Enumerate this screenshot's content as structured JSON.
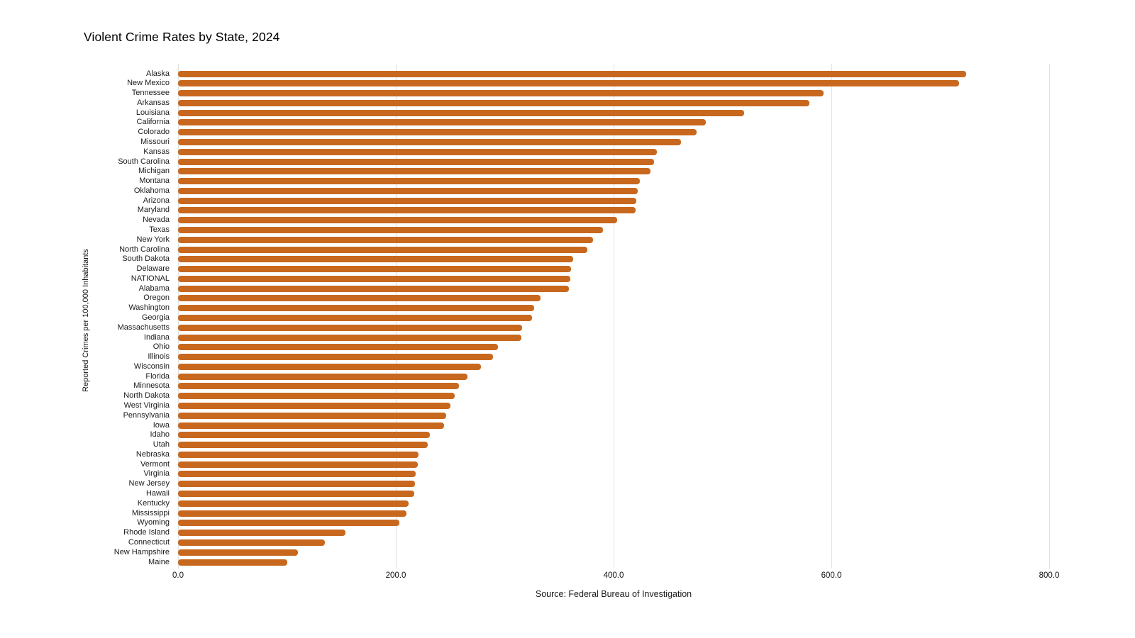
{
  "chart_data": {
    "type": "bar",
    "orientation": "horizontal",
    "title": "Violent Crime Rates by State, 2024",
    "ylabel": "Reported Crimes per 100,000 Inhabitants",
    "xlabel": "",
    "source": "Source: Federal Bureau of Investigation",
    "legend": false,
    "grid": true,
    "xlim": [
      0,
      800
    ],
    "x_ticks": [
      {
        "label": "0.0",
        "value": 0
      },
      {
        "label": "200.0",
        "value": 200
      },
      {
        "label": "400.0",
        "value": 400
      },
      {
        "label": "600.0",
        "value": 600
      },
      {
        "label": "800.0",
        "value": 800
      }
    ],
    "bar_color": "#C8681E",
    "gridline_color": "#E0E0E0",
    "categories": [
      "Alaska",
      "New Mexico",
      "Tennessee",
      "Arkansas",
      "Louisiana",
      "California",
      "Colorado",
      "Missouri",
      "Kansas",
      "South Carolina",
      "Michigan",
      "Montana",
      "Oklahoma",
      "Arizona",
      "Maryland",
      "Nevada",
      "Texas",
      "New York",
      "North Carolina",
      "South Dakota",
      "Delaware",
      "NATIONAL",
      "Alabama",
      "Oregon",
      "Washington",
      "Georgia",
      "Massachusetts",
      "Indiana",
      "Ohio",
      "Illinois",
      "Wisconsin",
      "Florida",
      "Minnesota",
      "North Dakota",
      "West Virginia",
      "Pennsylvania",
      "Iowa",
      "Idaho",
      "Utah",
      "Nebraska",
      "Vermont",
      "Virginia",
      "New Jersey",
      "Hawaii",
      "Kentucky",
      "Mississippi",
      "Wyoming",
      "Rhode Island",
      "Connecticut",
      "New Hampshire",
      "Maine"
    ],
    "values": [
      724,
      717,
      593,
      580,
      520,
      485,
      476,
      462,
      440,
      437,
      434,
      424,
      422,
      421,
      420,
      403,
      390,
      381,
      376,
      363,
      361,
      360,
      359,
      333,
      327,
      325,
      316,
      315,
      294,
      289,
      278,
      266,
      258,
      254,
      250,
      246,
      244,
      231,
      229,
      221,
      220,
      218,
      217.5,
      217,
      212,
      210,
      203,
      154,
      135,
      110,
      100
    ]
  }
}
